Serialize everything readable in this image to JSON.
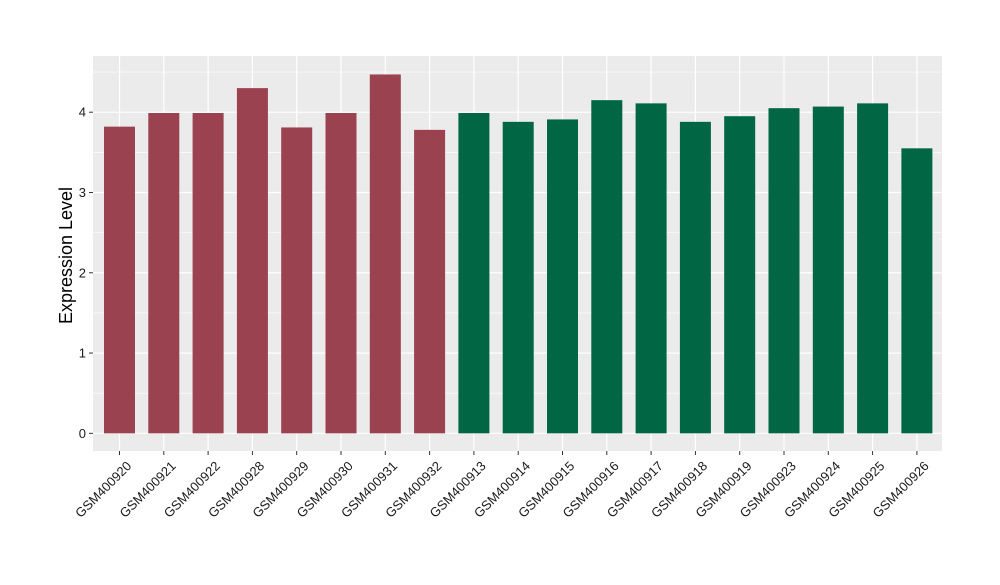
{
  "chart_data": {
    "type": "bar",
    "title": "",
    "xlabel": "",
    "ylabel": "Expression Level",
    "ylim": [
      -0.22,
      4.7
    ],
    "yticks": [
      0,
      1,
      2,
      3,
      4
    ],
    "ytick_labels": [
      "0",
      "1",
      "2",
      "3",
      "4"
    ],
    "grid": true,
    "legend": "none",
    "categories": [
      "GSM400920",
      "GSM400921",
      "GSM400922",
      "GSM400928",
      "GSM400929",
      "GSM400930",
      "GSM400931",
      "GSM400932",
      "GSM400913",
      "GSM400914",
      "GSM400915",
      "GSM400916",
      "GSM400917",
      "GSM400918",
      "GSM400919",
      "GSM400923",
      "GSM400924",
      "GSM400925",
      "GSM400926"
    ],
    "values": [
      3.82,
      3.99,
      3.99,
      4.3,
      3.81,
      3.99,
      4.47,
      3.78,
      3.99,
      3.88,
      3.91,
      4.15,
      4.11,
      3.88,
      3.95,
      4.05,
      4.07,
      4.11,
      3.55
    ],
    "groups": [
      {
        "color": "#9A4250",
        "count": 8
      },
      {
        "color": "#006644",
        "count": 11
      }
    ],
    "colors": {
      "panel_background": "#EBEBEB",
      "grid_major": "#FFFFFF",
      "tick_text": "#1a1a1a"
    }
  }
}
